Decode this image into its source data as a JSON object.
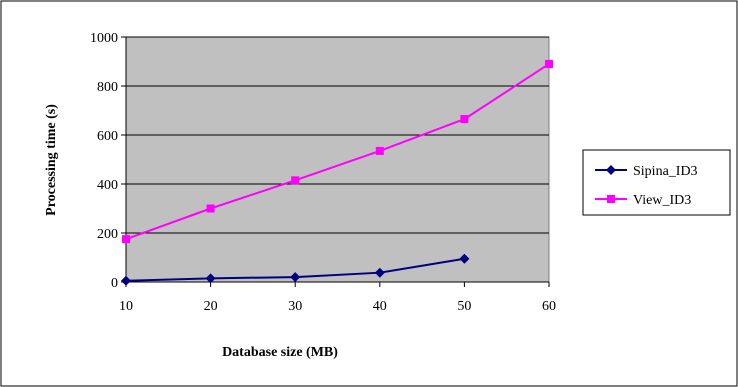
{
  "chart_data": {
    "type": "line",
    "x": [
      10,
      20,
      30,
      40,
      50,
      60
    ],
    "xlim": [
      10,
      60
    ],
    "ylim": [
      0,
      1000
    ],
    "xticks": [
      "10",
      "20",
      "30",
      "40",
      "50",
      "60"
    ],
    "yticks": [
      "0",
      "200",
      "400",
      "600",
      "800",
      "1000"
    ],
    "xlabel": "Database size (MB)",
    "ylabel": "Processing time (s)",
    "grid": "horizontal",
    "legend_position": "right",
    "plot_background": "#c0c0c0",
    "series": [
      {
        "name": "Sipina_ID3",
        "color": "#000080",
        "marker": "diamond",
        "x": [
          10,
          20,
          30,
          40,
          50
        ],
        "values": [
          5,
          15,
          20,
          38,
          95
        ]
      },
      {
        "name": "View_ID3",
        "color": "#ff00ff",
        "marker": "square",
        "x": [
          10,
          20,
          30,
          40,
          50,
          60
        ],
        "values": [
          175,
          300,
          415,
          535,
          665,
          890
        ]
      }
    ]
  }
}
